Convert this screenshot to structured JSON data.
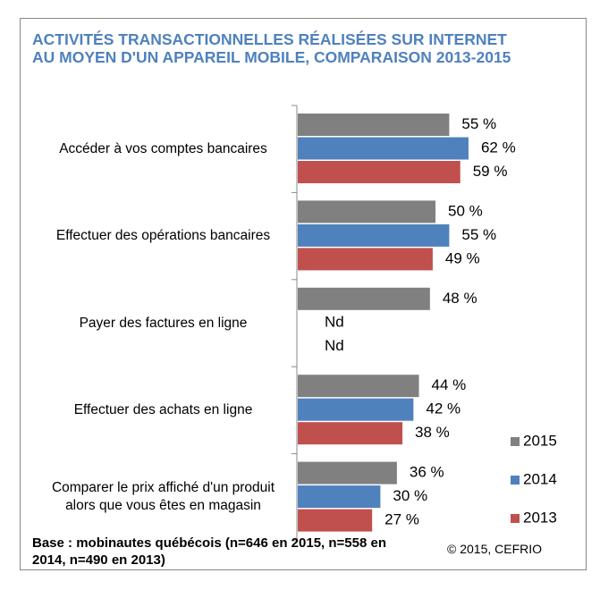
{
  "chart_data": {
    "type": "bar",
    "orientation": "horizontal",
    "title": "ACTIVITÉS TRANSACTIONNELLES RÉALISÉES SUR INTERNET AU MOYEN D'UN APPAREIL MOBILE, COMPARAISON 2013-2015",
    "categories": [
      "Accéder à vos comptes bancaires",
      "Effectuer des opérations bancaires",
      "Payer des factures en ligne",
      "Effectuer des achats en ligne",
      "Comparer le prix affiché d'un produit alors que vous êtes en magasin"
    ],
    "series": [
      {
        "name": "2015",
        "color": "#808080",
        "values": [
          55,
          50,
          48,
          44,
          36
        ],
        "value_labels": [
          "55 %",
          "50 %",
          "48 %",
          "44 %",
          "36 %"
        ]
      },
      {
        "name": "2014",
        "color": "#4f81bd",
        "values": [
          62,
          55,
          null,
          42,
          30
        ],
        "value_labels": [
          "62 %",
          "55 %",
          "Nd",
          "42 %",
          "30 %"
        ]
      },
      {
        "name": "2013",
        "color": "#c0504d",
        "values": [
          59,
          49,
          null,
          38,
          27
        ],
        "value_labels": [
          "59 %",
          "49 %",
          "Nd",
          "38 %",
          "27 %"
        ]
      }
    ],
    "xlim": [
      0,
      100
    ],
    "legend": "right",
    "note": "Base : mobinautes québécois (n=646 en 2015, n=558 en 2014, n=490 en 2013)",
    "source": "© 2015, CEFRIO"
  }
}
